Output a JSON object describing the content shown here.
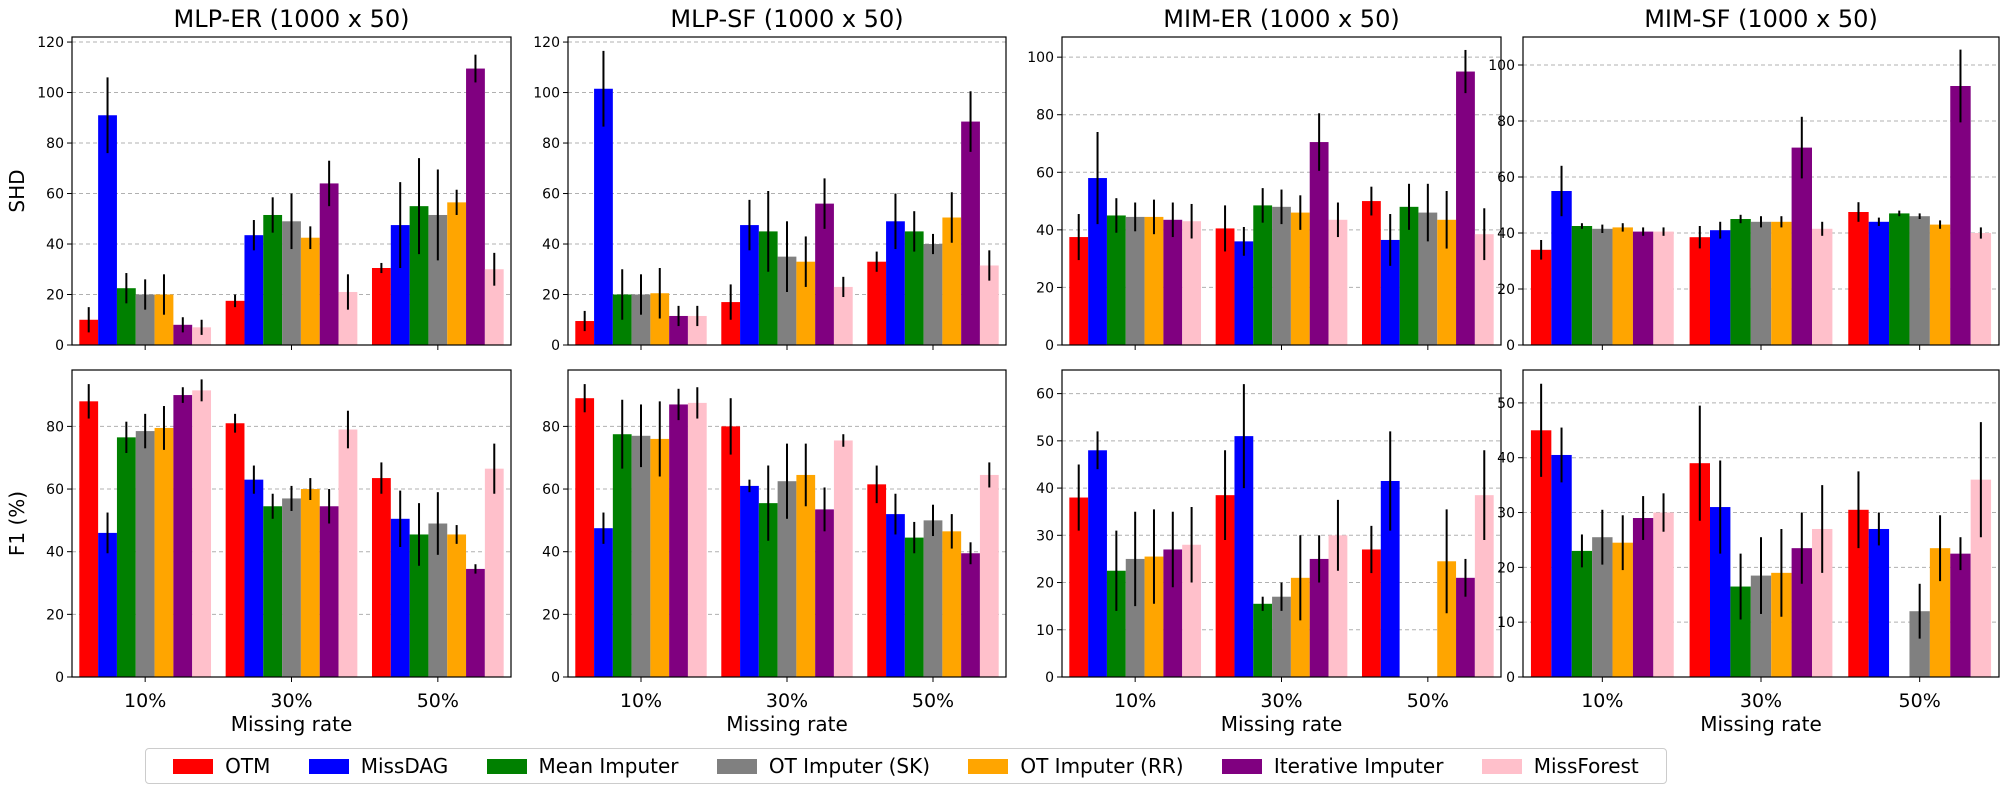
{
  "methods": [
    {
      "name": "OTM",
      "color": "#ff0000"
    },
    {
      "name": "MissDAG",
      "color": "#0000ff"
    },
    {
      "name": "Mean Imputer",
      "color": "#008000"
    },
    {
      "name": "OT Imputer (SK)",
      "color": "#808080"
    },
    {
      "name": "OT Imputer (RR)",
      "color": "#ffa500"
    },
    {
      "name": "Iterative Imputer",
      "color": "#800080"
    },
    {
      "name": "MissForest",
      "color": "#ffc0cb"
    }
  ],
  "chart_data": [
    {
      "type": "bar",
      "title": "MLP-ER (1000 x 50)",
      "ylabel": "SHD",
      "xlabel": "",
      "categories": [
        "10%",
        "30%",
        "50%"
      ],
      "ylim": [
        0,
        122
      ],
      "yticks": [
        0,
        20,
        40,
        60,
        80,
        100,
        120
      ],
      "grid": true,
      "series": [
        {
          "name": "OTM",
          "values": [
            10,
            17.5,
            30.5
          ],
          "errors": [
            5,
            2.5,
            2
          ]
        },
        {
          "name": "MissDAG",
          "values": [
            91,
            43.5,
            47.5
          ],
          "errors": [
            15,
            6,
            17
          ]
        },
        {
          "name": "Mean Imputer",
          "values": [
            22.5,
            51.5,
            55
          ],
          "errors": [
            6,
            7,
            19
          ]
        },
        {
          "name": "OT Imputer (SK)",
          "values": [
            20,
            49,
            51.5
          ],
          "errors": [
            6,
            11,
            18
          ]
        },
        {
          "name": "OT Imputer (RR)",
          "values": [
            20,
            42.5,
            56.5
          ],
          "errors": [
            8,
            4.5,
            5
          ]
        },
        {
          "name": "Iterative Imputer",
          "values": [
            8,
            64,
            109.5
          ],
          "errors": [
            3,
            9,
            5.5
          ]
        },
        {
          "name": "MissForest",
          "values": [
            7,
            21,
            30
          ],
          "errors": [
            3,
            7,
            6.5
          ]
        }
      ]
    },
    {
      "type": "bar",
      "title": "MLP-SF (1000 x 50)",
      "ylabel": "",
      "xlabel": "",
      "categories": [
        "10%",
        "30%",
        "50%"
      ],
      "ylim": [
        0,
        122
      ],
      "yticks": [
        0,
        20,
        40,
        60,
        80,
        100,
        120
      ],
      "grid": true,
      "series": [
        {
          "name": "OTM",
          "values": [
            9.5,
            17,
            33
          ],
          "errors": [
            4,
            7,
            4
          ]
        },
        {
          "name": "MissDAG",
          "values": [
            101.5,
            47.5,
            49
          ],
          "errors": [
            15,
            10,
            11
          ]
        },
        {
          "name": "Mean Imputer",
          "values": [
            20,
            45,
            45
          ],
          "errors": [
            10,
            16,
            8
          ]
        },
        {
          "name": "OT Imputer (SK)",
          "values": [
            20,
            35,
            40
          ],
          "errors": [
            8,
            14,
            4
          ]
        },
        {
          "name": "OT Imputer (RR)",
          "values": [
            20.5,
            33,
            50.5
          ],
          "errors": [
            10,
            10,
            10
          ]
        },
        {
          "name": "Iterative Imputer",
          "values": [
            11.5,
            56,
            88.5
          ],
          "errors": [
            4,
            10,
            12
          ]
        },
        {
          "name": "MissForest",
          "values": [
            11.5,
            23,
            31.5
          ],
          "errors": [
            4,
            4,
            6
          ]
        }
      ]
    },
    {
      "type": "bar",
      "title": "MIM-ER (1000 x 50)",
      "ylabel": "",
      "xlabel": "",
      "categories": [
        "10%",
        "30%",
        "50%"
      ],
      "ylim": [
        0,
        107
      ],
      "yticks": [
        0,
        20,
        40,
        60,
        80,
        100
      ],
      "grid": true,
      "series": [
        {
          "name": "OTM",
          "values": [
            37.5,
            40.5,
            50
          ],
          "errors": [
            8,
            8,
            5
          ]
        },
        {
          "name": "MissDAG",
          "values": [
            58,
            36,
            36.5
          ],
          "errors": [
            16,
            5,
            9
          ]
        },
        {
          "name": "Mean Imputer",
          "values": [
            45,
            48.5,
            48
          ],
          "errors": [
            6,
            6,
            8
          ]
        },
        {
          "name": "OT Imputer (SK)",
          "values": [
            44.5,
            48,
            46
          ],
          "errors": [
            5,
            6,
            10
          ]
        },
        {
          "name": "OT Imputer (RR)",
          "values": [
            44.5,
            46,
            43.5
          ],
          "errors": [
            6,
            6,
            10
          ]
        },
        {
          "name": "Iterative Imputer",
          "values": [
            43.5,
            70.5,
            95
          ],
          "errors": [
            6,
            10,
            7.5
          ]
        },
        {
          "name": "MissForest",
          "values": [
            43,
            43.5,
            38.5
          ],
          "errors": [
            6,
            6,
            9
          ]
        }
      ]
    },
    {
      "type": "bar",
      "title": "MIM-SF (1000 x 50)",
      "ylabel": "",
      "xlabel": "",
      "categories": [
        "10%",
        "30%",
        "50%"
      ],
      "ylim": [
        0,
        110
      ],
      "yticks": [
        0,
        20,
        40,
        60,
        80,
        100
      ],
      "grid": true,
      "series": [
        {
          "name": "OTM",
          "values": [
            34,
            38.5,
            47.5
          ],
          "errors": [
            3.5,
            4,
            3.5
          ]
        },
        {
          "name": "MissDAG",
          "values": [
            55,
            41,
            44
          ],
          "errors": [
            9,
            3,
            1.5
          ]
        },
        {
          "name": "Mean Imputer",
          "values": [
            42.5,
            45,
            47
          ],
          "errors": [
            1,
            1.5,
            1
          ]
        },
        {
          "name": "OT Imputer (SK)",
          "values": [
            41.5,
            44,
            46
          ],
          "errors": [
            1.5,
            2,
            1
          ]
        },
        {
          "name": "OT Imputer (RR)",
          "values": [
            42,
            44,
            43
          ],
          "errors": [
            1.5,
            2,
            1.5
          ]
        },
        {
          "name": "Iterative Imputer",
          "values": [
            40.5,
            70.5,
            92.5
          ],
          "errors": [
            1.5,
            11,
            13
          ]
        },
        {
          "name": "MissForest",
          "values": [
            40.5,
            41.5,
            40
          ],
          "errors": [
            1.5,
            2.5,
            2
          ]
        }
      ]
    },
    {
      "type": "bar",
      "title": "",
      "ylabel": "F1 (%)",
      "xlabel": "Missing rate",
      "categories": [
        "10%",
        "30%",
        "50%"
      ],
      "ylim": [
        0,
        98
      ],
      "yticks": [
        0,
        20,
        40,
        60,
        80
      ],
      "grid": true,
      "series": [
        {
          "name": "OTM",
          "values": [
            88,
            81,
            63.5
          ],
          "errors": [
            5.5,
            3,
            5
          ]
        },
        {
          "name": "MissDAG",
          "values": [
            46,
            63,
            50.5
          ],
          "errors": [
            6.5,
            4.5,
            9
          ]
        },
        {
          "name": "Mean Imputer",
          "values": [
            76.5,
            54.5,
            45.5
          ],
          "errors": [
            5,
            4,
            10
          ]
        },
        {
          "name": "OT Imputer (SK)",
          "values": [
            78.5,
            57,
            49
          ],
          "errors": [
            5.5,
            4,
            10
          ]
        },
        {
          "name": "OT Imputer (RR)",
          "values": [
            79.5,
            60,
            45.5
          ],
          "errors": [
            7,
            3.5,
            3
          ]
        },
        {
          "name": "Iterative Imputer",
          "values": [
            90,
            54.5,
            34.5
          ],
          "errors": [
            2.5,
            5.5,
            1.5
          ]
        },
        {
          "name": "MissForest",
          "values": [
            91.5,
            79,
            66.5
          ],
          "errors": [
            3.5,
            6,
            8
          ]
        }
      ]
    },
    {
      "type": "bar",
      "title": "",
      "ylabel": "",
      "xlabel": "Missing rate",
      "categories": [
        "10%",
        "30%",
        "50%"
      ],
      "ylim": [
        0,
        98
      ],
      "yticks": [
        0,
        20,
        40,
        60,
        80
      ],
      "grid": true,
      "series": [
        {
          "name": "OTM",
          "values": [
            89,
            80,
            61.5
          ],
          "errors": [
            4.5,
            9,
            6
          ]
        },
        {
          "name": "MissDAG",
          "values": [
            47.5,
            61,
            52
          ],
          "errors": [
            5,
            2,
            6.5
          ]
        },
        {
          "name": "Mean Imputer",
          "values": [
            77.5,
            55.5,
            44.5
          ],
          "errors": [
            11,
            12,
            5
          ]
        },
        {
          "name": "OT Imputer (SK)",
          "values": [
            77,
            62.5,
            50
          ],
          "errors": [
            10,
            12,
            5
          ]
        },
        {
          "name": "OT Imputer (RR)",
          "values": [
            76,
            64.5,
            46.5
          ],
          "errors": [
            12,
            10,
            5.5
          ]
        },
        {
          "name": "Iterative Imputer",
          "values": [
            87,
            53.5,
            39.5
          ],
          "errors": [
            5,
            7,
            3.5
          ]
        },
        {
          "name": "MissForest",
          "values": [
            87.5,
            75.5,
            64.5
          ],
          "errors": [
            5,
            2,
            4
          ]
        }
      ]
    },
    {
      "type": "bar",
      "title": "",
      "ylabel": "",
      "xlabel": "Missing rate",
      "categories": [
        "10%",
        "30%",
        "50%"
      ],
      "ylim": [
        0,
        65
      ],
      "yticks": [
        0,
        10,
        20,
        30,
        40,
        50,
        60
      ],
      "grid": true,
      "series": [
        {
          "name": "OTM",
          "values": [
            38,
            38.5,
            27
          ],
          "errors": [
            7,
            9.5,
            5
          ]
        },
        {
          "name": "MissDAG",
          "values": [
            48,
            51,
            41.5
          ],
          "errors": [
            4,
            11,
            10.5
          ]
        },
        {
          "name": "Mean Imputer",
          "values": [
            22.5,
            15.5,
            0
          ],
          "errors": [
            8.5,
            1.5,
            0
          ]
        },
        {
          "name": "OT Imputer (SK)",
          "values": [
            25,
            17,
            0
          ],
          "errors": [
            10,
            3,
            0
          ]
        },
        {
          "name": "OT Imputer (RR)",
          "values": [
            25.5,
            21,
            24.5
          ],
          "errors": [
            10,
            9,
            11
          ]
        },
        {
          "name": "Iterative Imputer",
          "values": [
            27,
            25,
            21
          ],
          "errors": [
            8,
            5,
            4
          ]
        },
        {
          "name": "MissForest",
          "values": [
            28,
            30,
            38.5
          ],
          "errors": [
            8,
            7.5,
            9.5
          ]
        }
      ]
    },
    {
      "type": "bar",
      "title": "",
      "ylabel": "",
      "xlabel": "Missing rate",
      "categories": [
        "10%",
        "30%",
        "50%"
      ],
      "ylim": [
        0,
        56
      ],
      "yticks": [
        0,
        10,
        20,
        30,
        40,
        50
      ],
      "grid": true,
      "series": [
        {
          "name": "OTM",
          "values": [
            45,
            39,
            30.5
          ],
          "errors": [
            8.5,
            10.5,
            7
          ]
        },
        {
          "name": "MissDAG",
          "values": [
            40.5,
            31,
            27
          ],
          "errors": [
            5,
            8.5,
            3
          ]
        },
        {
          "name": "Mean Imputer",
          "values": [
            23,
            16.5,
            0
          ],
          "errors": [
            3,
            6,
            0
          ]
        },
        {
          "name": "OT Imputer (SK)",
          "values": [
            25.5,
            18.5,
            12
          ],
          "errors": [
            5,
            7,
            5
          ]
        },
        {
          "name": "OT Imputer (RR)",
          "values": [
            24.5,
            19,
            23.5
          ],
          "errors": [
            5,
            8,
            6
          ]
        },
        {
          "name": "Iterative Imputer",
          "values": [
            29,
            23.5,
            22.5
          ],
          "errors": [
            4,
            6.5,
            3
          ]
        },
        {
          "name": "MissForest",
          "values": [
            30,
            27,
            36
          ],
          "errors": [
            3.5,
            8,
            10.5
          ]
        }
      ]
    }
  ]
}
